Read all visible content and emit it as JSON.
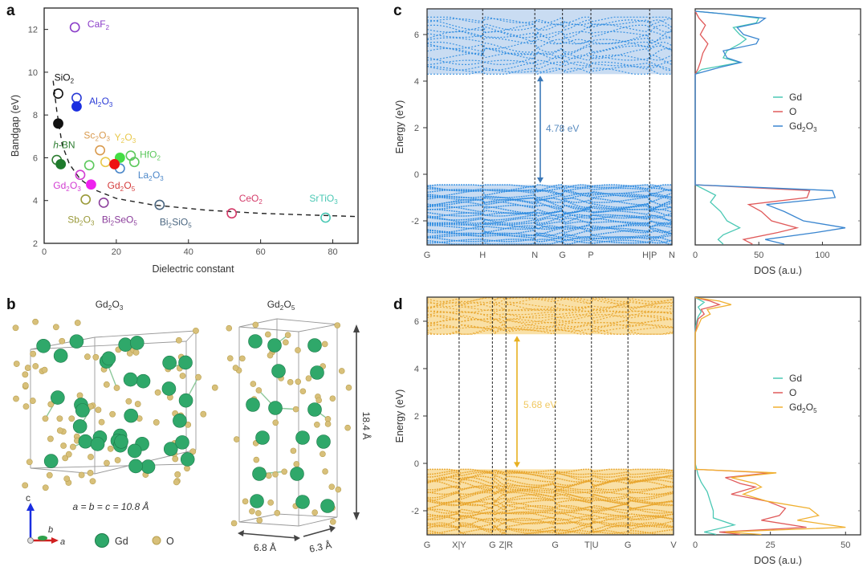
{
  "panels": {
    "a": "a",
    "b": "b",
    "c": "c",
    "d": "d"
  },
  "chart_data": [
    {
      "id": "a",
      "type": "scatter",
      "title": "",
      "xlabel": "Dielectric constant",
      "ylabel": "Bandgap (eV)",
      "xlim": [
        0,
        87
      ],
      "ylim": [
        2,
        13
      ],
      "xticks": [
        0,
        20,
        40,
        60,
        80
      ],
      "yticks": [
        2,
        4,
        6,
        8,
        10,
        12
      ],
      "grid": false,
      "trend_line": {
        "style": "dashed",
        "color": "#222222",
        "x": [
          2.5,
          3.5,
          5,
          7,
          10,
          14,
          20,
          30,
          45,
          60,
          87
        ],
        "y": [
          9.6,
          8.2,
          6.6,
          5.7,
          5.0,
          4.5,
          4.1,
          3.8,
          3.55,
          3.4,
          3.25
        ]
      },
      "points": [
        {
          "material": "CaF2",
          "x": 8.5,
          "y": 12.1,
          "filled": false,
          "color": "#8a3cc8"
        },
        {
          "material": "SiO2",
          "x": 3.9,
          "y": 9.0,
          "filled": false,
          "color": "#111111"
        },
        {
          "material": "SiO2",
          "x": 3.9,
          "y": 7.6,
          "filled": true,
          "color": "#111111"
        },
        {
          "material": "Al2O3",
          "x": 9.0,
          "y": 8.8,
          "filled": false,
          "color": "#2a3bd6"
        },
        {
          "material": "Al2O3",
          "x": 9.0,
          "y": 8.4,
          "filled": true,
          "color": "#1a2ee0"
        },
        {
          "material": "h-BN",
          "x": 3.5,
          "y": 5.9,
          "filled": false,
          "color": "#2e7d32"
        },
        {
          "material": "h-BN",
          "x": 4.6,
          "y": 5.7,
          "filled": true,
          "color": "#1e7a2c"
        },
        {
          "material": "Sc2O3",
          "x": 15.5,
          "y": 6.35,
          "filled": false,
          "color": "#d99a4e"
        },
        {
          "material": "Y2O3",
          "x": 17.0,
          "y": 5.8,
          "filled": false,
          "color": "#e8c84a"
        },
        {
          "material": "HfO2",
          "x": 12.5,
          "y": 5.65,
          "filled": false,
          "color": "#5cc85c"
        },
        {
          "material": "HfO2",
          "x": 24.0,
          "y": 6.1,
          "filled": false,
          "color": "#5cc85c"
        },
        {
          "material": "HfO2",
          "x": 25.0,
          "y": 5.8,
          "filled": false,
          "color": "#5cc85c"
        },
        {
          "material": "HfO2",
          "x": 21.0,
          "y": 6.0,
          "filled": true,
          "color": "#44dd44"
        },
        {
          "material": "La2O3",
          "x": 21.0,
          "y": 5.5,
          "filled": false,
          "color": "#4a86c8"
        },
        {
          "material": "Gd2O5",
          "x": 19.5,
          "y": 5.7,
          "filled": true,
          "color": "#ee1111"
        },
        {
          "material": "Gd2O3",
          "x": 10.0,
          "y": 5.2,
          "filled": false,
          "color": "#d23cd2"
        },
        {
          "material": "Gd2O3",
          "x": 13.0,
          "y": 4.75,
          "filled": true,
          "color": "#ee22ee"
        },
        {
          "material": "Sb2O3",
          "x": 11.5,
          "y": 4.05,
          "filled": false,
          "color": "#9a9a3a"
        },
        {
          "material": "Bi2SeO5",
          "x": 16.5,
          "y": 3.9,
          "filled": false,
          "color": "#8a3c9a"
        },
        {
          "material": "Bi2SiO5",
          "x": 32.0,
          "y": 3.8,
          "filled": false,
          "color": "#4a6680"
        },
        {
          "material": "CeO2",
          "x": 52.0,
          "y": 3.4,
          "filled": false,
          "color": "#d43c6a"
        },
        {
          "material": "SrTiO3",
          "x": 78.0,
          "y": 3.2,
          "filled": false,
          "color": "#4ac8b4"
        }
      ],
      "labels": [
        {
          "base": "CaF",
          "sub": "2",
          "rest": "",
          "x": 12,
          "y": 12.1,
          "color": "#8a3cc8"
        },
        {
          "base": "SiO",
          "sub": "2",
          "rest": "",
          "x": 2.8,
          "y": 9.6,
          "color": "#111111"
        },
        {
          "base": "Al",
          "sub": "2",
          "rest": "O",
          "sub2": "3",
          "x": 12.5,
          "y": 8.5,
          "color": "#2a3bd6"
        },
        {
          "base": "h-BN",
          "sub": "",
          "rest": "",
          "x": 2.5,
          "y": 6.45,
          "color": "#2e7d32",
          "italic_h": true
        },
        {
          "base": "Sc",
          "sub": "2",
          "rest": "O",
          "sub2": "3",
          "x": 11,
          "y": 6.9,
          "color": "#d99a4e"
        },
        {
          "base": "Y",
          "sub": "2",
          "rest": "O",
          "sub2": "3",
          "x": 19.5,
          "y": 6.8,
          "color": "#e8c84a"
        },
        {
          "base": "HfO",
          "sub": "2",
          "rest": "",
          "x": 26.5,
          "y": 6.0,
          "color": "#5cc85c"
        },
        {
          "base": "La",
          "sub": "2",
          "rest": "O",
          "sub2": "3",
          "x": 26,
          "y": 5.05,
          "color": "#4a86c8"
        },
        {
          "base": "Gd",
          "sub": "2",
          "rest": "O",
          "sub2": "5",
          "x": 17.5,
          "y": 4.55,
          "color": "#d43c3c"
        },
        {
          "base": "Gd",
          "sub": "2",
          "rest": "O",
          "sub2": "3",
          "x": 2.5,
          "y": 4.55,
          "color": "#d23cd2"
        },
        {
          "base": "Sb",
          "sub": "2",
          "rest": "O",
          "sub2": "3",
          "x": 6.5,
          "y": 2.95,
          "color": "#9a9a3a"
        },
        {
          "base": "Bi",
          "sub": "2",
          "rest": "SeO",
          "sub2": "5",
          "x": 16,
          "y": 2.95,
          "color": "#8a3c9a"
        },
        {
          "base": "Bi",
          "sub": "2",
          "rest": "SiO",
          "sub2": "5",
          "x": 32,
          "y": 2.85,
          "color": "#4a6680"
        },
        {
          "base": "CeO",
          "sub": "2",
          "rest": "",
          "x": 54,
          "y": 3.95,
          "color": "#d43c6a"
        },
        {
          "base": "SrTiO",
          "sub": "3",
          "rest": "",
          "x": 73.5,
          "y": 3.95,
          "color": "#4ac8b4"
        }
      ]
    },
    {
      "id": "c",
      "type": "line",
      "title": "",
      "xlabel": "",
      "ylabel": "Energy (eV)",
      "ylim": [
        -3.0,
        7.0
      ],
      "yticks": [
        -2,
        0,
        2,
        4,
        6
      ],
      "kpath_labels": [
        "G",
        "H",
        "N",
        "G",
        "P",
        "H|P",
        "N"
      ],
      "kpath_positions": [
        0,
        0.227,
        0.44,
        0.553,
        0.669,
        0.909,
        1.0
      ],
      "conduction_band_min": 4.3,
      "valence_band_max": -0.45,
      "band_top": 6.75,
      "band_bottom": -3.0,
      "gap_annotation": "4.78 eV",
      "color": "#2b8be0",
      "shade": "#c9dcf2"
    },
    {
      "id": "c-dos",
      "type": "line",
      "xlabel": "DOS (a.u.)",
      "xlim": [
        0,
        130
      ],
      "xticks": [
        0,
        50,
        100
      ],
      "ylim": [
        -3.0,
        7.0
      ],
      "legend": {
        "position": "center-right",
        "entries": [
          {
            "label": "Gd",
            "color": "#4ac8b4"
          },
          {
            "label": "O",
            "color": "#e05a5a"
          },
          {
            "label": "Gd2O3",
            "color": "#3a86d0"
          }
        ]
      },
      "series": [
        {
          "name": "Gd",
          "energy": [
            7.0,
            6.9,
            6.7,
            6.5,
            6.3,
            6.0,
            5.8,
            5.6,
            5.3,
            5.0,
            4.8,
            4.6,
            4.5,
            4.3,
            1.0,
            -0.45,
            -0.9,
            -1.2,
            -1.6,
            -2.0,
            -2.3,
            -2.6,
            -2.8,
            -3.0
          ],
          "dos": [
            0,
            20,
            50,
            48,
            30,
            35,
            40,
            35,
            25,
            22,
            35,
            15,
            5,
            0,
            0,
            0,
            16,
            12,
            20,
            25,
            35,
            22,
            18,
            22
          ]
        },
        {
          "name": "O",
          "energy": [
            7.0,
            6.7,
            6.4,
            6.0,
            5.6,
            5.2,
            4.8,
            4.5,
            4.3,
            1.0,
            -0.45,
            -0.7,
            -1.0,
            -1.3,
            -1.6,
            -2.0,
            -2.3,
            -2.5,
            -2.8,
            -3.0
          ],
          "dos": [
            0,
            3,
            8,
            4,
            10,
            6,
            4,
            2,
            0,
            0,
            0,
            90,
            88,
            42,
            52,
            60,
            80,
            65,
            38,
            45
          ]
        },
        {
          "name": "Gd2O3",
          "energy": [
            7.0,
            6.9,
            6.7,
            6.5,
            6.3,
            6.0,
            5.8,
            5.6,
            5.3,
            5.0,
            4.8,
            4.6,
            4.3,
            1.0,
            -0.45,
            -0.7,
            -1.0,
            -1.3,
            -1.6,
            -2.0,
            -2.3,
            -2.5,
            -2.8,
            -3.0
          ],
          "dos": [
            0,
            20,
            55,
            50,
            33,
            38,
            50,
            48,
            22,
            25,
            36,
            20,
            0,
            0,
            0,
            108,
            110,
            56,
            70,
            85,
            118,
            95,
            55,
            70
          ]
        }
      ]
    },
    {
      "id": "d",
      "type": "line",
      "title": "",
      "xlabel": "",
      "ylabel": "Energy (eV)",
      "ylim": [
        -3.0,
        7.0
      ],
      "yticks": [
        -2,
        0,
        2,
        4,
        6
      ],
      "kpath_labels": [
        "G",
        "X|Y",
        "G",
        "Z|R",
        "G",
        "T|U",
        "G",
        "V"
      ],
      "kpath_positions": [
        0,
        0.13,
        0.265,
        0.32,
        0.52,
        0.667,
        0.815,
        1.0
      ],
      "conduction_band_min": 5.45,
      "valence_band_max": -0.25,
      "band_top": 7.0,
      "band_bottom": -3.0,
      "gap_annotation": "5.68 eV",
      "color": "#e8a42a",
      "shade": "#f9e0a6"
    },
    {
      "id": "d-dos",
      "type": "line",
      "xlabel": "DOS (a.u.)",
      "xlim": [
        0,
        55
      ],
      "xticks": [
        0,
        25,
        50
      ],
      "ylim": [
        -3.0,
        7.0
      ],
      "legend": {
        "position": "center-right",
        "entries": [
          {
            "label": "Gd",
            "color": "#4ac8b4"
          },
          {
            "label": "O",
            "color": "#e05a5a"
          },
          {
            "label": "Gd2O5",
            "color": "#f0b030"
          }
        ]
      },
      "series": [
        {
          "name": "Gd",
          "energy": [
            7.0,
            6.8,
            6.6,
            6.4,
            6.2,
            6.0,
            5.8,
            5.5,
            0,
            -0.25,
            -0.5,
            -0.8,
            -1.2,
            -1.6,
            -2.0,
            -2.3,
            -2.6,
            -2.9,
            -3.0
          ],
          "dos": [
            0,
            3,
            1,
            2,
            1,
            0.5,
            0.2,
            0,
            0,
            0.5,
            1,
            2,
            4,
            5,
            6,
            6,
            13,
            3,
            7
          ]
        },
        {
          "name": "O",
          "energy": [
            7.0,
            6.85,
            6.7,
            6.5,
            6.3,
            6.1,
            5.8,
            5.5,
            0,
            -0.25,
            -0.4,
            -0.6,
            -0.85,
            -1.0,
            -1.3,
            -1.6,
            -1.9,
            -2.2,
            -2.4,
            -2.7,
            -2.9,
            -3.0
          ],
          "dos": [
            0,
            5,
            8,
            2,
            3,
            1,
            0.5,
            0,
            0,
            0,
            25,
            10,
            15,
            20,
            12,
            24,
            30,
            28,
            22,
            37,
            8,
            15
          ]
        },
        {
          "name": "Gd2O5",
          "energy": [
            7.0,
            6.85,
            6.7,
            6.5,
            6.3,
            6.1,
            5.8,
            5.5,
            0,
            -0.25,
            -0.4,
            -0.6,
            -0.85,
            -1.0,
            -1.3,
            -1.6,
            -1.9,
            -2.2,
            -2.4,
            -2.7,
            -2.9,
            -3.0
          ],
          "dos": [
            0,
            8,
            12,
            4,
            5,
            2,
            1,
            0,
            0,
            0,
            27,
            12,
            20,
            22,
            16,
            24,
            38,
            41,
            34,
            50,
            10,
            22
          ]
        }
      ]
    }
  ],
  "panel_b": {
    "gd2o3_title_base": "Gd",
    "gd2o3_title_sub1": "2",
    "gd2o3_title_mid": "O",
    "gd2o3_title_sub2": "3",
    "gd2o5_title_base": "Gd",
    "gd2o5_title_sub1": "2",
    "gd2o5_title_mid": "O",
    "gd2o5_title_sub2": "5",
    "lattice_text": "a = b = c = 10.8 Å",
    "dim_height": "18.4 Å",
    "dim_a": "6.8 Å",
    "dim_b": "6.3 Å",
    "axis_c": "c",
    "axis_b": "b",
    "axis_a": "a",
    "legend_gd": "Gd",
    "legend_o": "O",
    "gd_color": "#2fa86a",
    "o_color": "#d8c07a"
  }
}
